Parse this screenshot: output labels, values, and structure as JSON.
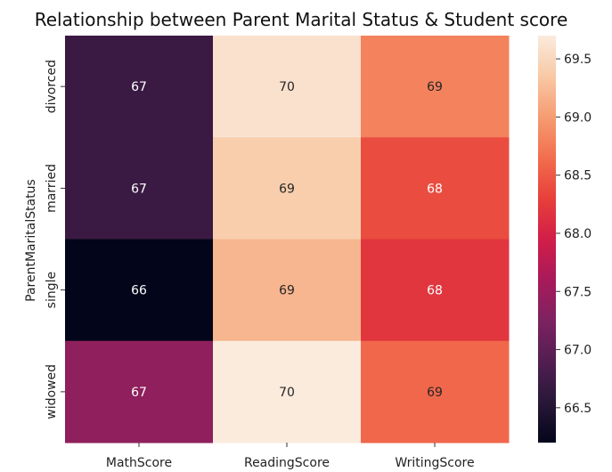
{
  "chart_data": {
    "type": "heatmap",
    "title": "Relationship between Parent Marital Status & Student score",
    "xlabel": "",
    "ylabel": "ParentMaritalStatus",
    "x_categories": [
      "MathScore",
      "ReadingScore",
      "WritingScore"
    ],
    "y_categories": [
      "divorced",
      "married",
      "single",
      "widowed"
    ],
    "values": [
      [
        66.7,
        69.6,
        68.8
      ],
      [
        66.7,
        69.4,
        68.4
      ],
      [
        66.2,
        69.2,
        68.2
      ],
      [
        67.4,
        69.7,
        68.6
      ]
    ],
    "cell_labels": [
      [
        "67",
        "70",
        "69"
      ],
      [
        "67",
        "69",
        "68"
      ],
      [
        "66",
        "69",
        "68"
      ],
      [
        "67",
        "70",
        "69"
      ]
    ],
    "colorbar": {
      "min": 66.2,
      "max": 69.7,
      "ticks": [
        66.5,
        67.0,
        67.5,
        68.0,
        68.5,
        69.0,
        69.5
      ],
      "tick_labels": [
        "66.5",
        "67.0",
        "67.5",
        "68.0",
        "68.5",
        "69.0",
        "69.5"
      ],
      "colormap": "rocket"
    }
  }
}
